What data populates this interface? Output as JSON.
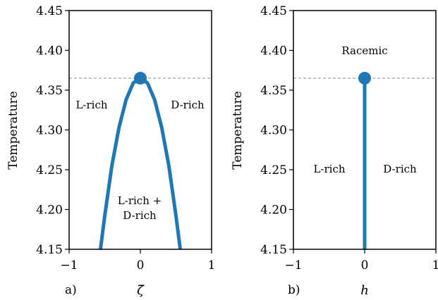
{
  "chart_data": [
    {
      "type": "line",
      "panel_label": "a)",
      "xlabel": "ζ̄",
      "ylabel": "Temperature",
      "xlim": [
        -1,
        1
      ],
      "ylim": [
        4.15,
        4.45
      ],
      "xticks": [
        "−1",
        "0",
        "1"
      ],
      "yticks": [
        "4.15",
        "4.20",
        "4.25",
        "4.30",
        "4.35",
        "4.40",
        "4.45"
      ],
      "color": "#1f77b4",
      "reference_line_y": 4.365,
      "series": [
        {
          "x": [
            -0.56,
            -0.5,
            -0.4,
            -0.3,
            -0.2,
            -0.1,
            0,
            0.1,
            0.2,
            0.3,
            0.4,
            0.5,
            0.56
          ],
          "y": [
            4.15,
            4.192,
            4.255,
            4.303,
            4.338,
            4.359,
            4.365,
            4.359,
            4.338,
            4.303,
            4.255,
            4.192,
            4.15
          ]
        }
      ],
      "marker": {
        "x": 0,
        "y": 4.365
      },
      "annotations": [
        "L-rich",
        "D-rich",
        "L-rich +",
        "D-rich"
      ]
    },
    {
      "type": "line",
      "panel_label": "b)",
      "xlabel": "h",
      "ylabel": "Temperature",
      "xlim": [
        -1,
        1
      ],
      "ylim": [
        4.15,
        4.45
      ],
      "xticks": [
        "−1",
        "0",
        "1"
      ],
      "yticks": [
        "4.15",
        "4.20",
        "4.25",
        "4.30",
        "4.35",
        "4.40",
        "4.45"
      ],
      "color": "#1f77b4",
      "reference_line_y": 4.365,
      "series": [
        {
          "x": [
            0,
            0
          ],
          "y": [
            4.15,
            4.365
          ]
        }
      ],
      "marker": {
        "x": 0,
        "y": 4.365
      },
      "annotations": [
        "Racemic",
        "L-rich",
        "D-rich"
      ]
    }
  ]
}
